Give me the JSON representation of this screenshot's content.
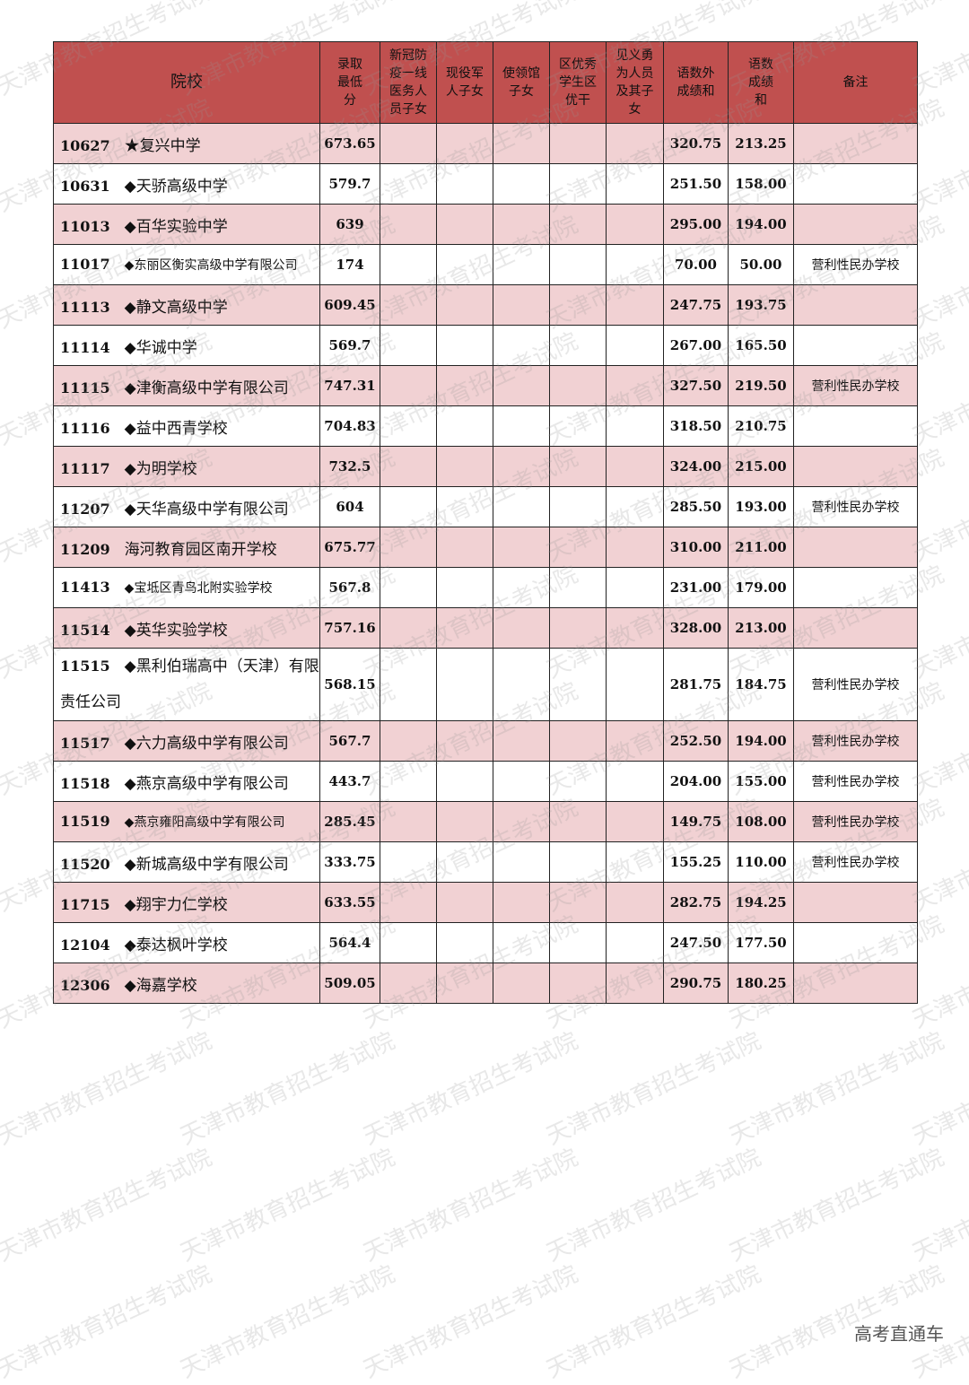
{
  "watermark": "天津市教育招生考试院",
  "logo": "高考直通车",
  "colors": {
    "header": "#c0504f",
    "row_pink": "#f1d1d3"
  },
  "headers": [
    "院校",
    "录取最低分",
    "新冠防疫一线医务人员子女",
    "现役军人子女",
    "使领馆子女",
    "区优秀学生区优干",
    "见义勇为人员及其子女",
    "语数外成绩和",
    "语数成绩和",
    "备注"
  ],
  "rows": [
    {
      "code": "10627",
      "name": "★复兴中学",
      "min": "673.65",
      "ysw": "320.75",
      "ys": "213.25",
      "note": ""
    },
    {
      "code": "10631",
      "name": "◆天骄高级中学",
      "min": "579.7",
      "ysw": "251.50",
      "ys": "158.00",
      "note": ""
    },
    {
      "code": "11013",
      "name": "◆百华实验中学",
      "min": "639",
      "ysw": "295.00",
      "ys": "194.00",
      "note": ""
    },
    {
      "code": "11017",
      "name": "◆东丽区衡实高级中学有限公司",
      "min": "174",
      "ysw": "70.00",
      "ys": "50.00",
      "note": "营利性民办学校"
    },
    {
      "code": "11113",
      "name": "◆静文高级中学",
      "min": "609.45",
      "ysw": "247.75",
      "ys": "193.75",
      "note": ""
    },
    {
      "code": "11114",
      "name": "◆华诚中学",
      "min": "569.7",
      "ysw": "267.00",
      "ys": "165.50",
      "note": ""
    },
    {
      "code": "11115",
      "name": "◆津衡高级中学有限公司",
      "min": "747.31",
      "ysw": "327.50",
      "ys": "219.50",
      "note": "营利性民办学校"
    },
    {
      "code": "11116",
      "name": "◆益中西青学校",
      "min": "704.83",
      "ysw": "318.50",
      "ys": "210.75",
      "note": ""
    },
    {
      "code": "11117",
      "name": "◆为明学校",
      "min": "732.5",
      "ysw": "324.00",
      "ys": "215.00",
      "note": ""
    },
    {
      "code": "11207",
      "name": "◆天华高级中学有限公司",
      "min": "604",
      "ysw": "285.50",
      "ys": "193.00",
      "note": "营利性民办学校"
    },
    {
      "code": "11209",
      "name": "海河教育园区南开学校",
      "min": "675.77",
      "ysw": "310.00",
      "ys": "211.00",
      "note": ""
    },
    {
      "code": "11413",
      "name": "◆宝坻区青鸟北附实验学校",
      "min": "567.8",
      "ysw": "231.00",
      "ys": "179.00",
      "note": ""
    },
    {
      "code": "11514",
      "name": "◆英华实验学校",
      "min": "757.16",
      "ysw": "328.00",
      "ys": "213.00",
      "note": ""
    },
    {
      "code": "11515",
      "name": "◆黑利伯瑞高中（天津）有限责任公司",
      "min": "568.15",
      "ysw": "281.75",
      "ys": "184.75",
      "note": "营利性民办学校"
    },
    {
      "code": "11517",
      "name": "◆六力高级中学有限公司",
      "min": "567.7",
      "ysw": "252.50",
      "ys": "194.00",
      "note": "营利性民办学校"
    },
    {
      "code": "11518",
      "name": "◆燕京高级中学有限公司",
      "min": "443.7",
      "ysw": "204.00",
      "ys": "155.00",
      "note": "营利性民办学校"
    },
    {
      "code": "11519",
      "name": "◆燕京雍阳高级中学有限公司",
      "min": "285.45",
      "ysw": "149.75",
      "ys": "108.00",
      "note": "营利性民办学校"
    },
    {
      "code": "11520",
      "name": "◆新城高级中学有限公司",
      "min": "333.75",
      "ysw": "155.25",
      "ys": "110.00",
      "note": "营利性民办学校"
    },
    {
      "code": "11715",
      "name": "◆翔宇力仁学校",
      "min": "633.55",
      "ysw": "282.75",
      "ys": "194.25",
      "note": ""
    },
    {
      "code": "12104",
      "name": "◆泰达枫叶学校",
      "min": "564.4",
      "ysw": "247.50",
      "ys": "177.50",
      "note": ""
    },
    {
      "code": "12306",
      "name": "◆海嘉学校",
      "min": "509.05",
      "ysw": "290.75",
      "ys": "180.25",
      "note": ""
    }
  ]
}
